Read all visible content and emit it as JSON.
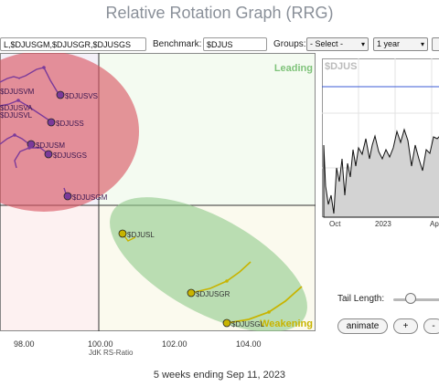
{
  "title": "Relative Rotation Graph (RRG)",
  "symbols_value": "L,$DJUSGM,$DJUSGR,$DJUSGS",
  "benchmark_label": "Benchmark:",
  "benchmark_value": "$DJUS",
  "groups_label": "Groups:",
  "groups_value": "- Select -",
  "period_value": "1 year",
  "quadrants": {
    "leading": "Leading",
    "weakening": "Weakening"
  },
  "x_axis": {
    "label": "JdK RS-Ratio",
    "ticks": [
      "98.00",
      "100.00",
      "102.00",
      "104.00"
    ]
  },
  "tails": [
    {
      "symbol": "$DJUSVM",
      "color": "#7b3a9a"
    },
    {
      "symbol": "$DJUSVS",
      "color": "#7b3a9a"
    },
    {
      "symbol": "$DJUSVA",
      "color": "#7b3a9a"
    },
    {
      "symbol": "$DJUSVL",
      "color": "#7b3a9a"
    },
    {
      "symbol": "$DJUSS",
      "color": "#7b3a9a"
    },
    {
      "symbol": "$DJUSM",
      "color": "#7b3a9a"
    },
    {
      "symbol": "$DJUSGS",
      "color": "#7b3a9a"
    },
    {
      "symbol": "$DJUSGM",
      "color": "#7b3a9a"
    },
    {
      "symbol": "$DJUSL",
      "color": "#c8b400"
    },
    {
      "symbol": "$DJUSGR",
      "color": "#c8b400"
    },
    {
      "symbol": "$DJUSGL",
      "color": "#c8b400"
    }
  ],
  "mini_chart": {
    "symbol": "$DJUS",
    "x_labels": [
      "Oct",
      "2023",
      "Ap"
    ]
  },
  "controls": {
    "tail_length_label": "Tail Length:",
    "animate_label": "animate",
    "plus_label": "+",
    "minus_label": "-"
  },
  "footer": "5 weeks ending Sep 11, 2023",
  "colors": {
    "purple": "#7b3a9a",
    "gold": "#c8b400",
    "red_zone": "#d9535f",
    "green_zone": "#8fc98a"
  }
}
